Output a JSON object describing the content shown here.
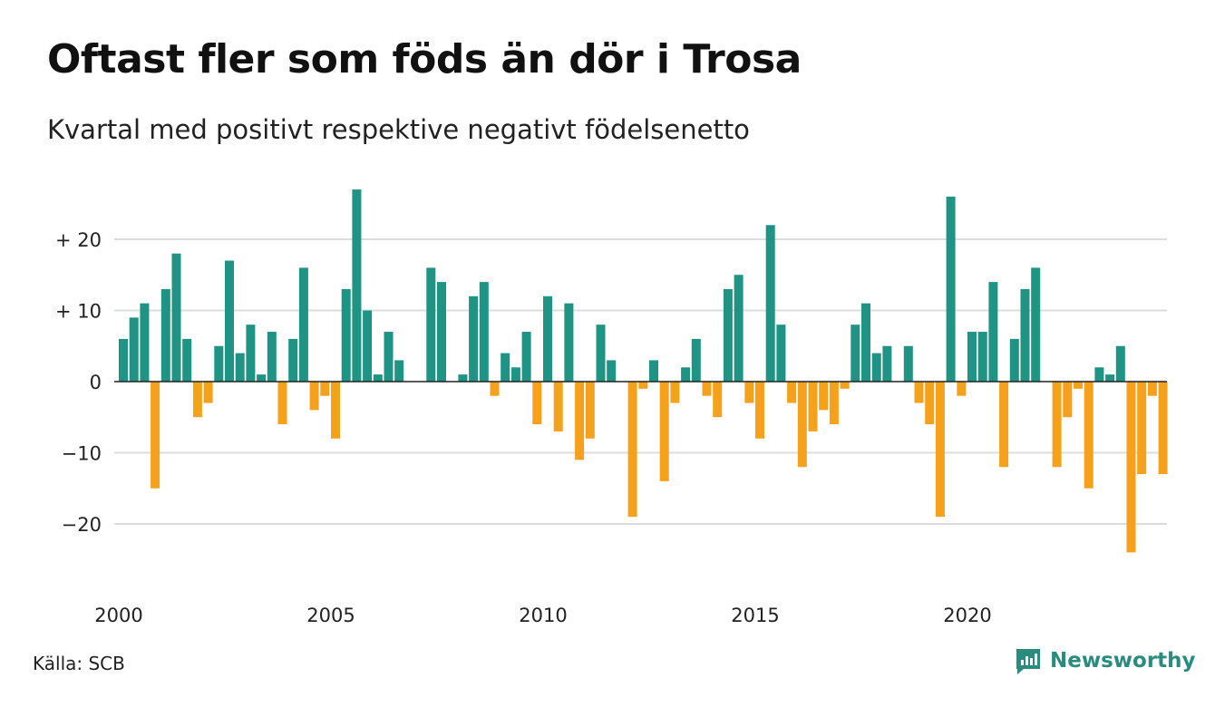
{
  "title": "Oftast fler som föds än dör i Trosa",
  "subtitle": "Kvartal med positivt respektive negativt födelsenetto",
  "source": "Källa: SCB",
  "brand": "Newsworthy",
  "colors": {
    "positive": "#1f9384",
    "negative": "#f5a11c",
    "grid": "#dddddd",
    "brand": "#2a8c7e"
  },
  "chart_data": {
    "type": "bar",
    "start_year": 2000,
    "values": [
      6,
      9,
      11,
      -15,
      13,
      18,
      6,
      -5,
      -3,
      5,
      17,
      4,
      8,
      1,
      7,
      -6,
      6,
      16,
      -4,
      -2,
      -8,
      13,
      27,
      10,
      1,
      7,
      3,
      0,
      0,
      16,
      14,
      0,
      1,
      12,
      14,
      -2,
      4,
      2,
      7,
      -6,
      12,
      -7,
      11,
      -11,
      -8,
      8,
      3,
      0,
      -19,
      -1,
      3,
      -14,
      -3,
      2,
      6,
      -2,
      -5,
      13,
      15,
      -3,
      -8,
      22,
      8,
      -3,
      -12,
      -7,
      -4,
      -6,
      -1,
      8,
      11,
      4,
      5,
      0,
      5,
      -3,
      -6,
      -19,
      26,
      -2,
      7,
      7,
      14,
      -12,
      6,
      13,
      16,
      0,
      -12,
      -5,
      -1,
      -15,
      2,
      1,
      5,
      -24,
      -13,
      -2,
      -13
    ],
    "y_ticks": [
      20,
      10,
      0,
      -10,
      -20
    ],
    "y_tick_labels": [
      "+ 20",
      "+ 10",
      "0",
      "−10",
      "−20"
    ],
    "x_tick_labels": [
      "2000",
      "2005",
      "2010",
      "2015",
      "2020"
    ],
    "ylim": [
      -27,
      29
    ],
    "grid": true
  }
}
